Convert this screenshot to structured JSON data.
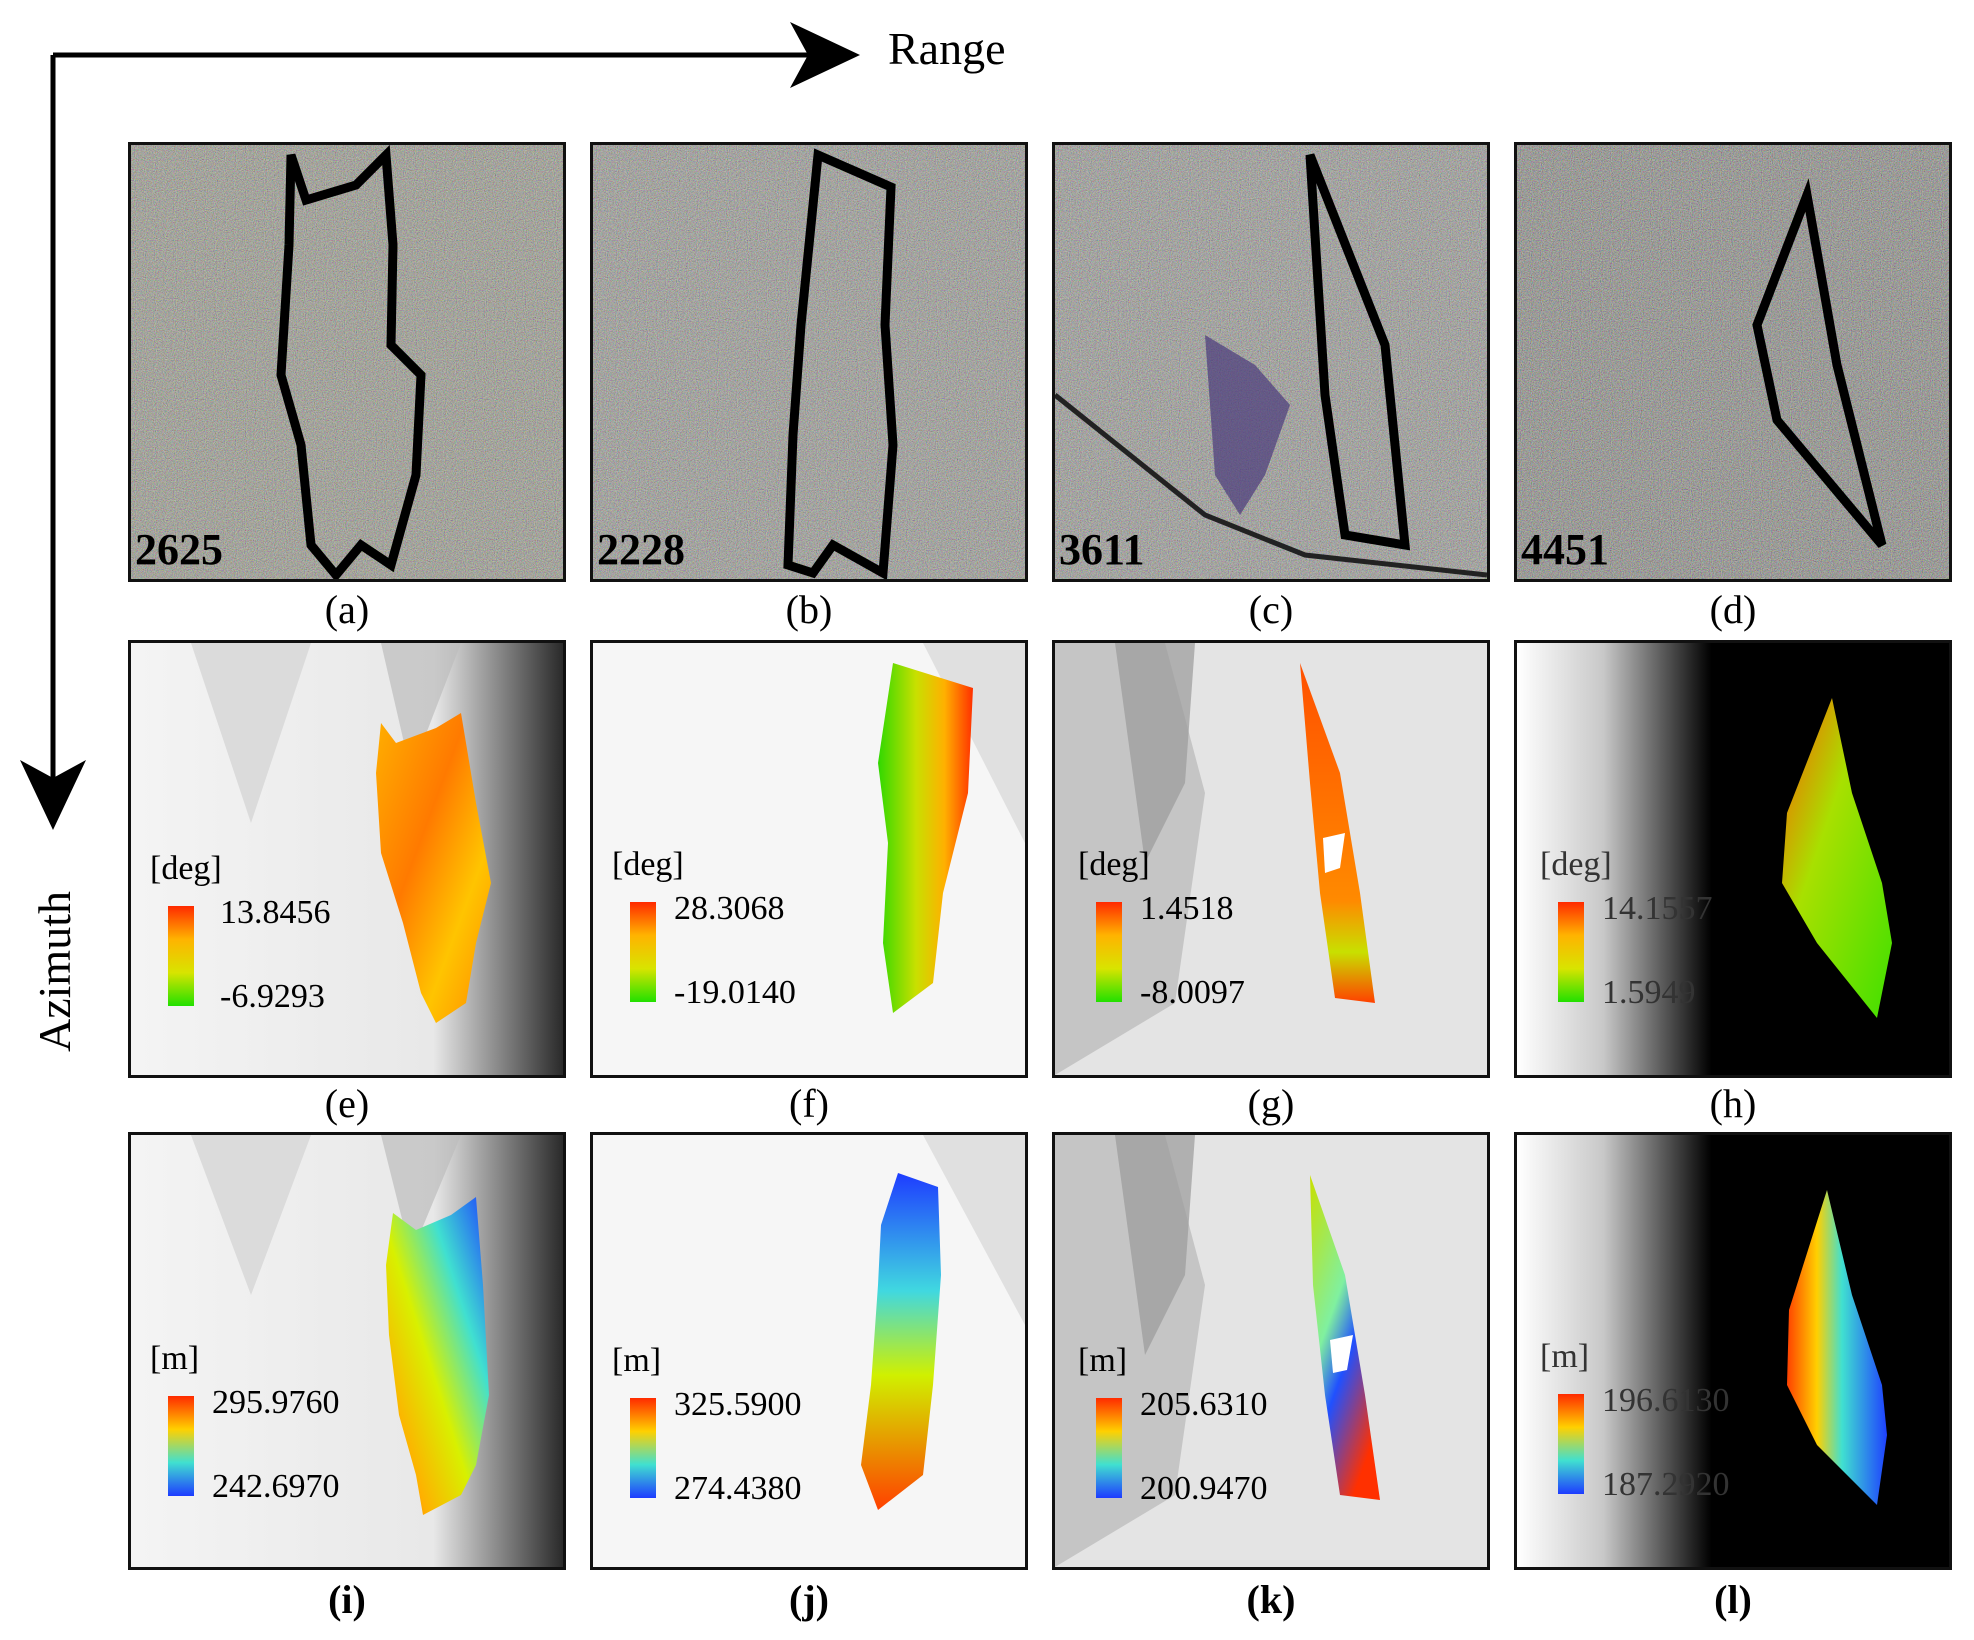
{
  "axes": {
    "range_label": "Range",
    "azimuth_label": "Azimuth"
  },
  "sar_panels": [
    {
      "caption": "(a)",
      "field_id": "2625"
    },
    {
      "caption": "(b)",
      "field_id": "2228"
    },
    {
      "caption": "(c)",
      "field_id": "3611"
    },
    {
      "caption": "(d)",
      "field_id": "4451"
    }
  ],
  "angle_panels": [
    {
      "caption": "(e)",
      "unit": "[deg]",
      "max": "13.8456",
      "min": "-6.9293"
    },
    {
      "caption": "(f)",
      "unit": "[deg]",
      "max": "28.3068",
      "min": "-19.0140"
    },
    {
      "caption": "(g)",
      "unit": "[deg]",
      "max": "1.4518",
      "min": "-8.0097"
    },
    {
      "caption": "(h)",
      "unit": "[deg]",
      "max": "14.1557",
      "min": "1.5949"
    }
  ],
  "height_panels": [
    {
      "caption": "(i)",
      "unit": "[m]",
      "max": "295.9760",
      "min": "242.6970"
    },
    {
      "caption": "(j)",
      "unit": "[m]",
      "max": "325.5900",
      "min": "274.4380"
    },
    {
      "caption": "(k)",
      "unit": "[m]",
      "max": "205.6310",
      "min": "200.9470"
    },
    {
      "caption": "(l)",
      "unit": "[m]",
      "max": "196.6130",
      "min": "187.2920"
    }
  ],
  "colors": {
    "angle_colormap": [
      "#ff2a00",
      "#ffb300",
      "#d8e400",
      "#22e000"
    ],
    "height_colormap": [
      "#ff2a00",
      "#ffd000",
      "#40e0d0",
      "#1e3cff"
    ],
    "outline": "#000000"
  }
}
